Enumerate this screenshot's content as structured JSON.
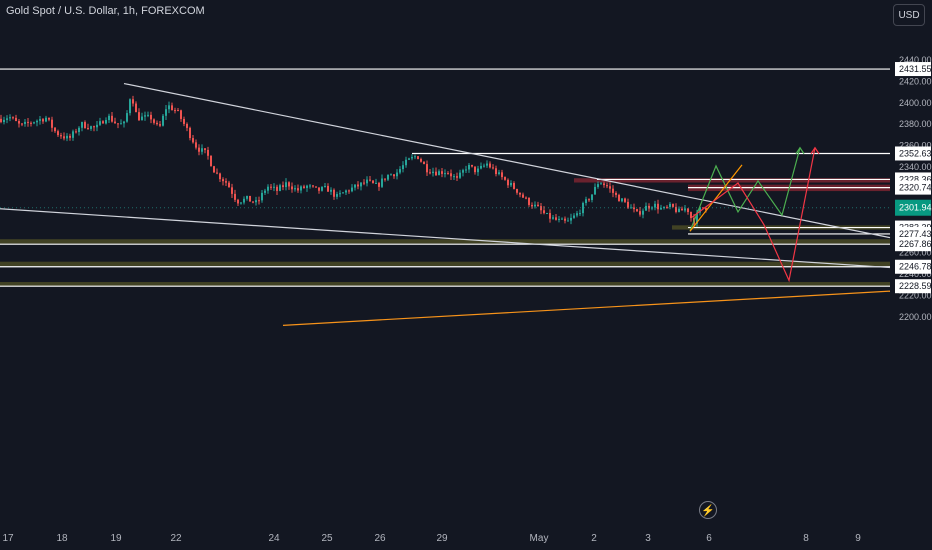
{
  "header": {
    "symbol": "Gold Spot / U.S. Dollar, 1h, FOREXCOM",
    "currency": "USD"
  },
  "icons": {
    "flash": "lightning-bolt-icon"
  },
  "colors": {
    "background": "#131722",
    "bull": "#26a69a",
    "bear": "#ef5350",
    "level_line": "#ffffff",
    "trendline": "#d1d4dc",
    "support_zone": "#4a4a24",
    "resistance_zone": "#7a2430",
    "last_price_tag": "#089981",
    "rising_trendline": "#f7931a",
    "projection_green": "#4caf50",
    "projection_red": "#f23645",
    "projection_orange": "#ff9800"
  },
  "chart_data": {
    "type": "candlestick",
    "title": "Gold Spot / U.S. Dollar, 1h, FOREXCOM",
    "x_ticks": [
      {
        "label": "17",
        "bar": 8
      },
      {
        "label": "18",
        "bar": 62
      },
      {
        "label": "19",
        "bar": 116
      },
      {
        "label": "22",
        "bar": 176
      },
      {
        "label": "24",
        "bar": 274
      },
      {
        "label": "25",
        "bar": 327
      },
      {
        "label": "26",
        "bar": 380
      },
      {
        "label": "29",
        "bar": 442
      },
      {
        "label": "May",
        "bar": 539
      },
      {
        "label": "2",
        "bar": 594
      },
      {
        "label": "3",
        "bar": 648
      },
      {
        "label": "6",
        "bar": 709
      },
      {
        "label": "8",
        "bar": 806
      },
      {
        "label": "9",
        "bar": 858
      }
    ],
    "y_ticks": [
      2200,
      2220,
      2240,
      2260,
      2280,
      2300,
      2320,
      2340,
      2360,
      2380,
      2400,
      2420,
      2440
    ],
    "ylim": [
      2185,
      2460
    ],
    "last_price": 2301.94,
    "horizontal_levels": [
      2431.55,
      2352.63,
      2328.36,
      2320.74,
      2283.39,
      2277.43,
      2267.86,
      2246.78,
      2228.59
    ],
    "zones": [
      {
        "kind": "resistance",
        "from": 2325.5,
        "to": 2329.5,
        "bar_start": 574
      },
      {
        "kind": "resistance",
        "from": 2317.5,
        "to": 2323.5,
        "bar_start": 688
      },
      {
        "kind": "support",
        "from": 2281.5,
        "to": 2285.5,
        "bar_start": 672
      },
      {
        "kind": "support",
        "from": 2268.5,
        "to": 2272.5,
        "bar_start": 0
      },
      {
        "kind": "support",
        "from": 2247.5,
        "to": 2251.5,
        "bar_start": 0
      },
      {
        "kind": "support",
        "from": 2228.5,
        "to": 2232.5,
        "bar_start": 0
      }
    ],
    "trendlines": [
      {
        "kind": "descending",
        "from": [
          124,
          2418
        ],
        "to": [
          890,
          2274
        ]
      },
      {
        "kind": "descending",
        "from": [
          0,
          2301
        ],
        "to": [
          890,
          2246
        ]
      },
      {
        "kind": "rising",
        "from": [
          283,
          2192
        ],
        "to": [
          890,
          2224
        ]
      }
    ],
    "projections": [
      {
        "color": "green",
        "points": [
          [
            690,
            2280
          ],
          [
            716,
            2341
          ],
          [
            738,
            2298
          ],
          [
            758,
            2327
          ],
          [
            782,
            2295
          ],
          [
            800,
            2358
          ]
        ]
      },
      {
        "color": "orange",
        "points": [
          [
            690,
            2280
          ],
          [
            742,
            2342
          ]
        ]
      },
      {
        "color": "red",
        "points": [
          [
            692,
            2293
          ],
          [
            738,
            2325
          ],
          [
            764,
            2286
          ],
          [
            789,
            2234
          ],
          [
            815,
            2358
          ]
        ]
      }
    ],
    "price_path": [
      [
        0,
        2385
      ],
      [
        8,
        2387
      ],
      [
        20,
        2378
      ],
      [
        30,
        2382
      ],
      [
        45,
        2386
      ],
      [
        55,
        2372
      ],
      [
        68,
        2366
      ],
      [
        80,
        2380
      ],
      [
        95,
        2376
      ],
      [
        106,
        2388
      ],
      [
        116,
        2380
      ],
      [
        124,
        2380
      ],
      [
        130,
        2410
      ],
      [
        136,
        2386
      ],
      [
        150,
        2386
      ],
      [
        158,
        2375
      ],
      [
        166,
        2398
      ],
      [
        176,
        2392
      ],
      [
        186,
        2375
      ],
      [
        196,
        2358
      ],
      [
        206,
        2352
      ],
      [
        214,
        2335
      ],
      [
        226,
        2325
      ],
      [
        236,
        2308
      ],
      [
        246,
        2310
      ],
      [
        256,
        2306
      ],
      [
        266,
        2322
      ],
      [
        276,
        2318
      ],
      [
        286,
        2325
      ],
      [
        296,
        2318
      ],
      [
        306,
        2322
      ],
      [
        316,
        2318
      ],
      [
        326,
        2320
      ],
      [
        336,
        2312
      ],
      [
        346,
        2318
      ],
      [
        356,
        2322
      ],
      [
        366,
        2326
      ],
      [
        376,
        2322
      ],
      [
        386,
        2332
      ],
      [
        396,
        2335
      ],
      [
        406,
        2345
      ],
      [
        416,
        2351
      ],
      [
        426,
        2338
      ],
      [
        436,
        2335
      ],
      [
        446,
        2336
      ],
      [
        456,
        2328
      ],
      [
        466,
        2341
      ],
      [
        476,
        2336
      ],
      [
        486,
        2343
      ],
      [
        496,
        2334
      ],
      [
        506,
        2326
      ],
      [
        516,
        2318
      ],
      [
        526,
        2308
      ],
      [
        536,
        2302
      ],
      [
        546,
        2294
      ],
      [
        556,
        2290
      ],
      [
        566,
        2288
      ],
      [
        576,
        2296
      ],
      [
        584,
        2306
      ],
      [
        592,
        2316
      ],
      [
        598,
        2327
      ],
      [
        606,
        2322
      ],
      [
        616,
        2312
      ],
      [
        626,
        2305
      ],
      [
        636,
        2296
      ],
      [
        644,
        2302
      ],
      [
        652,
        2305
      ],
      [
        662,
        2300
      ],
      [
        670,
        2303
      ],
      [
        678,
        2298
      ],
      [
        686,
        2302
      ],
      [
        692,
        2288
      ],
      [
        700,
        2302
      ],
      [
        706,
        2301.94
      ]
    ]
  }
}
